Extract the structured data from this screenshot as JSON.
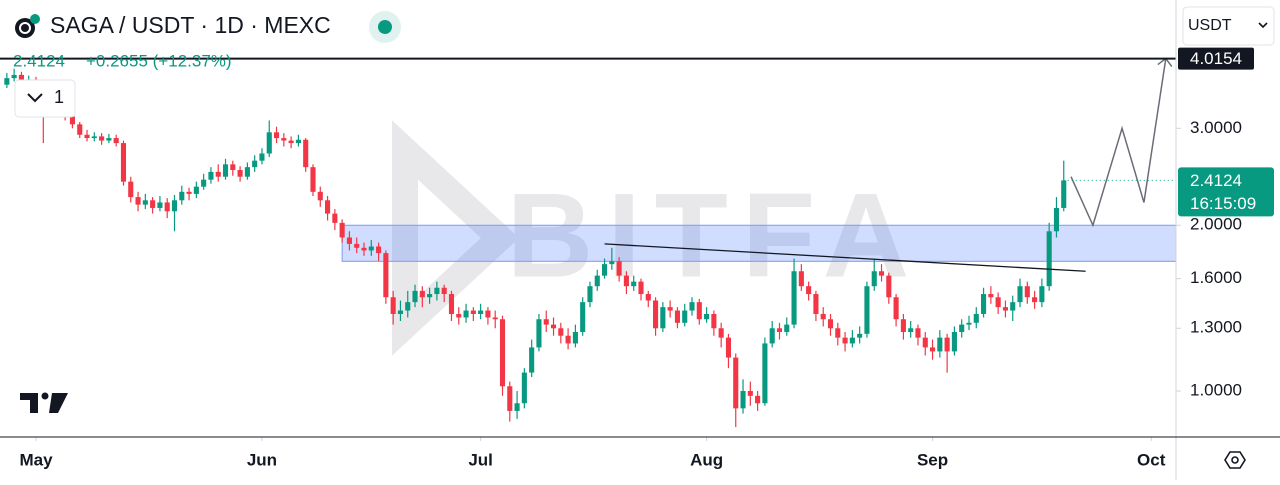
{
  "chart_data": {
    "type": "candlestick",
    "title": "SAGA / USDT · 1D · MEXC",
    "change": "+0.2655 (+12.37%)",
    "indicator_count": "1",
    "currency": "USDT",
    "watermark": "BITFA",
    "log_scale": true,
    "up_color": "#089981",
    "down_color": "#f23645",
    "open": [
      3.6,
      3.7,
      3.75,
      3.62,
      3.68,
      3.42,
      3.3,
      3.35,
      3.25,
      3.15,
      3.05,
      2.92,
      2.88,
      2.9,
      2.85,
      2.88,
      2.82,
      2.4,
      2.25,
      2.18,
      2.22,
      2.15,
      2.2,
      2.12,
      2.22,
      2.3,
      2.28,
      2.35,
      2.42,
      2.5,
      2.45,
      2.58,
      2.52,
      2.45,
      2.55,
      2.62,
      2.7,
      2.95,
      2.88,
      2.85,
      2.82,
      2.86,
      2.55,
      2.3,
      2.22,
      2.1,
      2.02,
      1.9,
      1.85,
      1.82,
      1.8,
      1.83,
      1.78,
      1.48,
      1.38,
      1.4,
      1.45,
      1.52,
      1.48,
      1.5,
      1.54,
      1.5,
      1.38,
      1.36,
      1.4,
      1.38,
      1.4,
      1.36,
      1.35,
      1.02,
      0.92,
      0.95,
      1.08,
      1.2,
      1.35,
      1.32,
      1.3,
      1.26,
      1.22,
      1.28,
      1.45,
      1.55,
      1.62,
      1.7,
      1.72,
      1.62,
      1.55,
      1.58,
      1.5,
      1.46,
      1.3,
      1.42,
      1.4,
      1.33,
      1.4,
      1.45,
      1.35,
      1.38,
      1.3,
      1.25,
      1.15,
      0.93,
      1.0,
      0.98,
      0.95,
      1.22,
      1.3,
      1.28,
      1.32,
      1.65,
      1.55,
      1.5,
      1.38,
      1.35,
      1.3,
      1.25,
      1.22,
      1.25,
      1.27,
      1.55,
      1.65,
      1.62,
      1.48,
      1.35,
      1.28,
      1.3,
      1.25,
      1.2,
      1.18,
      1.25,
      1.18,
      1.28,
      1.32,
      1.33,
      1.38,
      1.5,
      1.48,
      1.42,
      1.4,
      1.45,
      1.55,
      1.48,
      1.45,
      1.55,
      1.95,
      2.15
    ],
    "high": [
      3.78,
      3.85,
      3.8,
      3.74,
      3.72,
      3.48,
      3.42,
      3.4,
      3.3,
      3.2,
      3.08,
      2.98,
      2.95,
      2.94,
      2.93,
      2.92,
      2.85,
      2.45,
      2.3,
      2.28,
      2.25,
      2.26,
      2.24,
      2.27,
      2.36,
      2.34,
      2.4,
      2.48,
      2.55,
      2.58,
      2.64,
      2.62,
      2.56,
      2.6,
      2.68,
      2.76,
      3.1,
      3.02,
      2.94,
      2.9,
      2.92,
      2.88,
      2.58,
      2.35,
      2.26,
      2.14,
      2.05,
      1.95,
      1.9,
      1.86,
      1.88,
      1.86,
      1.8,
      1.52,
      1.46,
      1.52,
      1.56,
      1.55,
      1.54,
      1.58,
      1.56,
      1.52,
      1.42,
      1.44,
      1.42,
      1.44,
      1.42,
      1.4,
      1.37,
      1.04,
      1.0,
      1.1,
      1.24,
      1.38,
      1.4,
      1.36,
      1.33,
      1.3,
      1.32,
      1.48,
      1.58,
      1.66,
      1.74,
      1.82,
      1.75,
      1.65,
      1.62,
      1.6,
      1.52,
      1.48,
      1.45,
      1.46,
      1.42,
      1.44,
      1.48,
      1.47,
      1.42,
      1.4,
      1.33,
      1.27,
      1.17,
      1.05,
      1.04,
      1.0,
      1.25,
      1.34,
      1.33,
      1.36,
      1.74,
      1.7,
      1.58,
      1.52,
      1.42,
      1.38,
      1.33,
      1.28,
      1.29,
      1.31,
      1.58,
      1.74,
      1.7,
      1.64,
      1.5,
      1.38,
      1.34,
      1.32,
      1.28,
      1.24,
      1.29,
      1.27,
      1.31,
      1.35,
      1.37,
      1.42,
      1.54,
      1.55,
      1.51,
      1.46,
      1.49,
      1.6,
      1.58,
      1.52,
      1.6,
      2.02,
      2.25,
      2.62
    ],
    "low": [
      3.55,
      3.65,
      3.55,
      3.58,
      3.38,
      2.82,
      3.22,
      3.18,
      3.1,
      3.0,
      2.88,
      2.84,
      2.84,
      2.8,
      2.82,
      2.78,
      2.36,
      2.2,
      2.12,
      2.14,
      2.1,
      2.12,
      2.06,
      1.95,
      2.18,
      2.22,
      2.24,
      2.32,
      2.38,
      2.4,
      2.42,
      2.46,
      2.4,
      2.42,
      2.5,
      2.58,
      2.66,
      2.82,
      2.78,
      2.76,
      2.78,
      2.5,
      2.26,
      2.16,
      2.04,
      1.96,
      1.86,
      1.8,
      1.78,
      1.76,
      1.76,
      1.72,
      1.44,
      1.32,
      1.34,
      1.36,
      1.42,
      1.42,
      1.44,
      1.46,
      1.45,
      1.34,
      1.32,
      1.33,
      1.34,
      1.35,
      1.32,
      1.3,
      0.98,
      0.88,
      0.89,
      0.93,
      1.06,
      1.18,
      1.28,
      1.26,
      1.22,
      1.19,
      1.2,
      1.26,
      1.42,
      1.52,
      1.6,
      1.66,
      1.58,
      1.5,
      1.52,
      1.46,
      1.42,
      1.26,
      1.28,
      1.36,
      1.3,
      1.31,
      1.37,
      1.32,
      1.33,
      1.26,
      1.2,
      1.1,
      0.86,
      0.91,
      0.94,
      0.92,
      0.94,
      1.2,
      1.24,
      1.26,
      1.3,
      1.52,
      1.46,
      1.34,
      1.31,
      1.26,
      1.21,
      1.18,
      1.2,
      1.22,
      1.25,
      1.52,
      1.58,
      1.44,
      1.31,
      1.24,
      1.25,
      1.21,
      1.16,
      1.14,
      1.15,
      1.08,
      1.16,
      1.25,
      1.29,
      1.3,
      1.36,
      1.44,
      1.38,
      1.36,
      1.34,
      1.42,
      1.44,
      1.41,
      1.42,
      1.52,
      1.9,
      2.12
    ],
    "close": [
      3.7,
      3.75,
      3.62,
      3.68,
      3.42,
      3.3,
      3.35,
      3.25,
      3.15,
      3.05,
      2.92,
      2.88,
      2.9,
      2.85,
      2.88,
      2.82,
      2.4,
      2.25,
      2.18,
      2.22,
      2.15,
      2.2,
      2.12,
      2.22,
      2.3,
      2.28,
      2.35,
      2.42,
      2.5,
      2.45,
      2.58,
      2.52,
      2.45,
      2.55,
      2.62,
      2.7,
      2.95,
      2.88,
      2.85,
      2.82,
      2.86,
      2.55,
      2.3,
      2.22,
      2.1,
      2.02,
      1.9,
      1.85,
      1.82,
      1.8,
      1.83,
      1.78,
      1.48,
      1.38,
      1.4,
      1.45,
      1.52,
      1.48,
      1.5,
      1.54,
      1.5,
      1.38,
      1.36,
      1.4,
      1.38,
      1.4,
      1.36,
      1.35,
      1.02,
      0.92,
      0.95,
      1.08,
      1.2,
      1.35,
      1.32,
      1.3,
      1.26,
      1.22,
      1.28,
      1.45,
      1.55,
      1.62,
      1.7,
      1.72,
      1.62,
      1.55,
      1.58,
      1.5,
      1.46,
      1.3,
      1.42,
      1.4,
      1.33,
      1.4,
      1.45,
      1.35,
      1.38,
      1.3,
      1.25,
      1.15,
      0.93,
      1.0,
      0.98,
      0.95,
      1.22,
      1.3,
      1.28,
      1.32,
      1.65,
      1.55,
      1.5,
      1.38,
      1.35,
      1.3,
      1.25,
      1.22,
      1.25,
      1.27,
      1.55,
      1.65,
      1.62,
      1.48,
      1.35,
      1.28,
      1.3,
      1.25,
      1.2,
      1.18,
      1.25,
      1.18,
      1.28,
      1.32,
      1.33,
      1.38,
      1.5,
      1.48,
      1.42,
      1.4,
      1.45,
      1.55,
      1.48,
      1.45,
      1.55,
      1.95,
      2.15,
      2.4124
    ],
    "last_price": {
      "value": 2.4124,
      "label": "2.4124",
      "countdown": "16:15:09"
    },
    "target_line": {
      "value": 4.0154,
      "label": "4.0154"
    },
    "zone": {
      "start": 46,
      "low": 1.72,
      "high": 2.0
    },
    "trendline": [
      [
        82,
        1.85
      ],
      [
        148,
        1.65
      ]
    ],
    "projection": [
      [
        146,
        2.45
      ],
      [
        149,
        2.0
      ],
      [
        153,
        3.0
      ],
      [
        156,
        2.2
      ],
      [
        159,
        4.0154
      ]
    ],
    "xlim": [
      -0.94,
      160.4
    ],
    "xticks": [
      {
        "value": 4,
        "label": "May"
      },
      {
        "value": 35,
        "label": "Jun"
      },
      {
        "value": 65,
        "label": "Jul"
      },
      {
        "value": 96,
        "label": "Aug"
      },
      {
        "value": 127,
        "label": "Sep"
      },
      {
        "value": 157,
        "label": "Oct"
      }
    ],
    "ylim": [
      0.825,
      5.13
    ],
    "yticks": [
      {
        "value": 1,
        "label": "1.0000"
      },
      {
        "value": 1.3,
        "label": "1.3000"
      },
      {
        "value": 1.6,
        "label": "1.6000"
      },
      {
        "value": 2,
        "label": "2.0000"
      },
      {
        "value": 3,
        "label": "3.0000"
      }
    ]
  }
}
